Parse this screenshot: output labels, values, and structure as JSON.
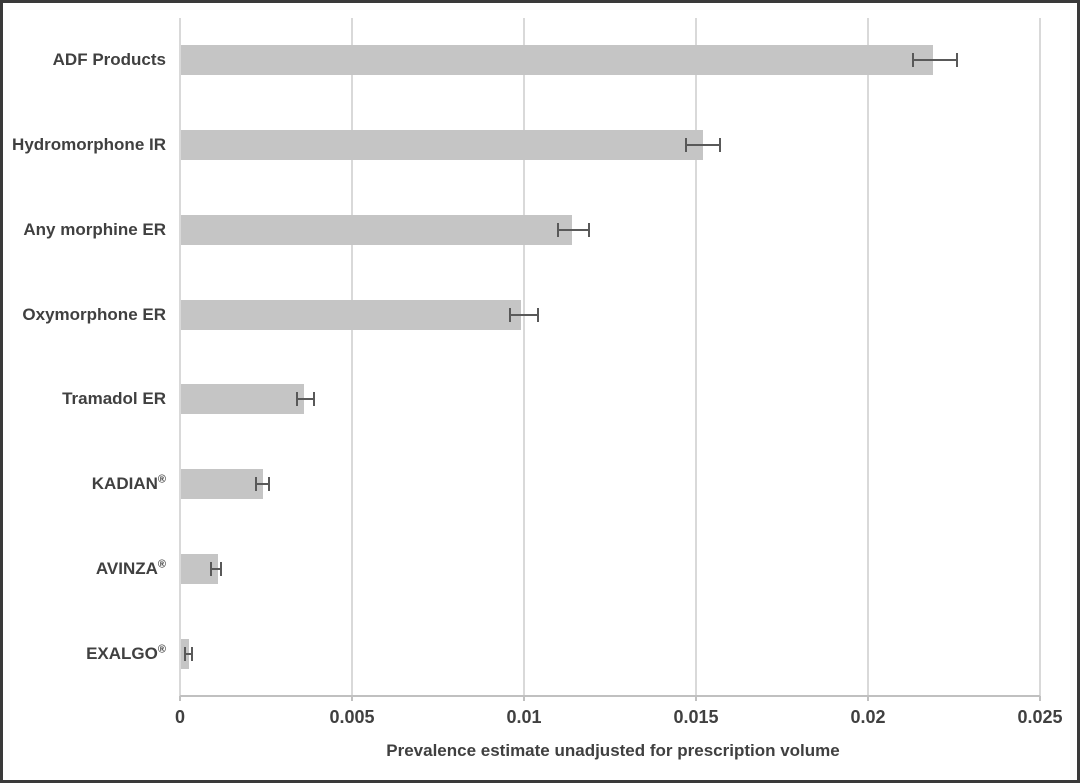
{
  "chart_data": {
    "type": "bar",
    "orientation": "horizontal",
    "title": "",
    "xlabel": "Prevalence estimate unadjusted for prescription volume",
    "ylabel": "",
    "xlim": [
      0,
      0.025
    ],
    "xticks": [
      0,
      0.005,
      0.01,
      0.015,
      0.02,
      0.025
    ],
    "xtick_labels": [
      "0",
      "0.005",
      "0.01",
      "0.015",
      "0.02",
      "0.025"
    ],
    "grid": "vertical gridlines on",
    "legend": "none",
    "categories": [
      "ADF Products",
      "Hydromorphone IR",
      "Any morphine ER",
      "Oxymorphone ER",
      "Tramadol ER",
      "KADIAN®",
      "AVINZA®",
      "EXALGO®"
    ],
    "values": [
      0.0219,
      0.0152,
      0.0114,
      0.0099,
      0.0036,
      0.0024,
      0.0011,
      0.00025
    ],
    "error_low": [
      0.0213,
      0.0147,
      0.011,
      0.0096,
      0.0034,
      0.0022,
      0.0009,
      0.00015
    ],
    "error_high": [
      0.0226,
      0.0157,
      0.0119,
      0.0104,
      0.0039,
      0.0026,
      0.0012,
      0.00035
    ],
    "colors": {
      "bar_fill": "#c5c5c5",
      "error_bar": "#595959",
      "gridline": "#d9d9d9",
      "axis_line": "#c0c0c0",
      "text": "#404040",
      "frame_border": "#3a3a3a",
      "background": "#ffffff"
    }
  }
}
